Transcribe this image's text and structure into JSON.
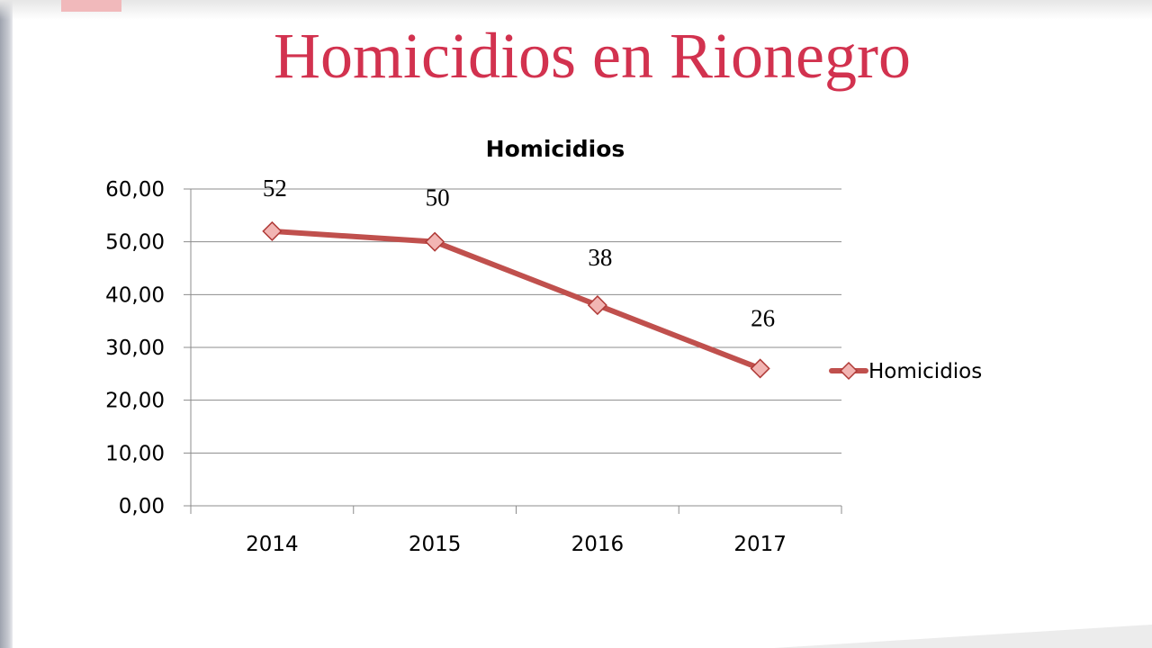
{
  "slide": {
    "title": "Homicidios en Rionegro"
  },
  "colors": {
    "title": "#d2324f",
    "series_line": "#c0504d",
    "marker_fill": "#f2b5b3",
    "marker_stroke": "#b03a37",
    "gridline": "#8c8c8c"
  },
  "chart_data": {
    "type": "line",
    "title": "Homicidios",
    "categories": [
      "2014",
      "2015",
      "2016",
      "2017"
    ],
    "series": [
      {
        "name": "Homicidios",
        "values": [
          52,
          50,
          38,
          26
        ],
        "marker": "diamond-icon"
      }
    ],
    "data_labels": [
      "52",
      "50",
      "38",
      "26"
    ],
    "ylim": [
      0,
      60
    ],
    "y_ticks": [
      "0,00",
      "10,00",
      "20,00",
      "30,00",
      "40,00",
      "50,00",
      "60,00"
    ],
    "grid": true,
    "legend_position": "right"
  }
}
